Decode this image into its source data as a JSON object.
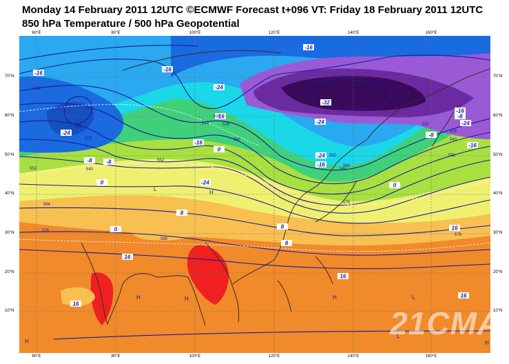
{
  "header": {
    "line1": "Monday 14 February 2011 12UTC ©ECMWF Forecast t+096 VT: Friday 18 February 2011 12UTC",
    "line2": "850 hPa Temperature / 500 hPa Geopotential"
  },
  "map": {
    "lon_labels": [
      "60°E",
      "80°E",
      "100°E",
      "120°E",
      "140°E",
      "160°E"
    ],
    "lat_labels": [
      "70°N",
      "60°N",
      "50°N",
      "40°N",
      "30°N",
      "20°N",
      "10°N"
    ],
    "temperature_labels": [
      "-16",
      "-16",
      "-16",
      "-24",
      "-32",
      "-24",
      "-16",
      "-24",
      "-24",
      "-16",
      "-16",
      "-8",
      "-8",
      "-8",
      "-8",
      "-16",
      "0",
      "-16",
      "0",
      "-24",
      "-24",
      "0",
      "8",
      "8",
      "0",
      "8",
      "16",
      "16",
      "16",
      "16",
      "16"
    ],
    "geopotential_labels": [
      "516",
      "504",
      "516",
      "528",
      "540",
      "552",
      "564",
      "576",
      "588",
      "552",
      "528",
      "516",
      "528",
      "540",
      "552",
      "564",
      "576",
      "552",
      "564",
      "576",
      "528",
      "540",
      "552"
    ],
    "pressure_centers": [
      "L",
      "H",
      "H",
      "H",
      "H",
      "H",
      "L",
      "L",
      "H"
    ],
    "colors": {
      "deep_purple": "#3a0a5a",
      "purple": "#6a2aa0",
      "violet": "#9a5ad6",
      "blue": "#1a6ae0",
      "light_blue": "#2aa8f0",
      "cyan": "#1ad8e8",
      "green": "#40d07a",
      "light_green": "#a8e040",
      "yellow": "#f0f070",
      "orange_light": "#f8c050",
      "orange": "#f08a2a",
      "red": "#f02020",
      "contour": "#1a1a9a"
    }
  },
  "watermark": "21CMA"
}
